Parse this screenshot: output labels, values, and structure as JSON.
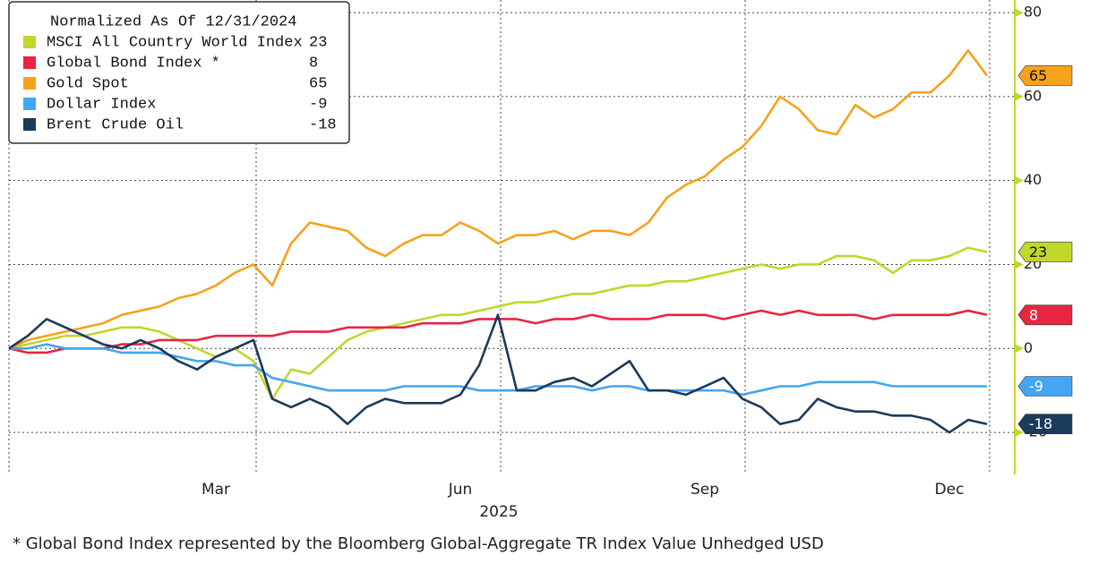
{
  "chart_data": {
    "type": "line",
    "legend_title": "Normalized As Of 12/31/2024",
    "xlabel": "2025",
    "footnote": "* Global Bond Index represented by the Bloomberg Global-Aggregate TR Index Value Unhedged USD",
    "categories": [
      null,
      null,
      null,
      null,
      null,
      null,
      null,
      null,
      null,
      null,
      null,
      "Mar",
      null,
      null,
      null,
      null,
      null,
      null,
      null,
      null,
      null,
      null,
      null,
      null,
      "Jun",
      null,
      null,
      null,
      null,
      null,
      null,
      null,
      null,
      null,
      null,
      null,
      null,
      "Sep",
      null,
      null,
      null,
      null,
      null,
      null,
      null,
      null,
      null,
      null,
      null,
      null,
      "Dec",
      null,
      null
    ],
    "series": [
      {
        "name": "MSCI All Country World Index",
        "color": "#c2d62c",
        "values": [
          0,
          1,
          2,
          3,
          3,
          4,
          5,
          5,
          4,
          2,
          0,
          -2,
          0,
          -3,
          -12,
          -5,
          -6,
          -2,
          2,
          4,
          5,
          6,
          7,
          8,
          8,
          9,
          10,
          11,
          11,
          12,
          13,
          13,
          14,
          15,
          15,
          16,
          16,
          17,
          18,
          19,
          20,
          19,
          20,
          20,
          22,
          22,
          21,
          18,
          21,
          21,
          22,
          24,
          23
        ]
      },
      {
        "name": "Global Bond Index *",
        "color": "#e8253f",
        "values": [
          0,
          -1,
          -1,
          0,
          0,
          0,
          1,
          1,
          2,
          2,
          2,
          3,
          3,
          3,
          3,
          4,
          4,
          4,
          5,
          5,
          5,
          5,
          6,
          6,
          6,
          7,
          7,
          7,
          6,
          7,
          7,
          8,
          7,
          7,
          7,
          8,
          8,
          8,
          7,
          8,
          9,
          8,
          9,
          8,
          8,
          8,
          7,
          8,
          8,
          8,
          8,
          9,
          8
        ]
      },
      {
        "name": "Gold Spot",
        "color": "#f7a21b",
        "values": [
          0,
          2,
          3,
          4,
          5,
          6,
          8,
          9,
          10,
          12,
          13,
          15,
          18,
          20,
          15,
          25,
          30,
          29,
          28,
          24,
          22,
          25,
          27,
          27,
          30,
          28,
          25,
          27,
          27,
          28,
          26,
          28,
          28,
          27,
          30,
          36,
          39,
          41,
          45,
          48,
          53,
          60,
          57,
          52,
          51,
          58,
          55,
          57,
          61,
          61,
          65,
          71,
          65
        ]
      },
      {
        "name": "Dollar Index",
        "color": "#44a5f0",
        "values": [
          0,
          0,
          1,
          0,
          0,
          0,
          -1,
          -1,
          -1,
          -2,
          -3,
          -3,
          -4,
          -4,
          -7,
          -8,
          -9,
          -10,
          -10,
          -10,
          -10,
          -9,
          -9,
          -9,
          -9,
          -10,
          -10,
          -10,
          -9,
          -9,
          -9,
          -10,
          -9,
          -9,
          -10,
          -10,
          -10,
          -10,
          -10,
          -11,
          -10,
          -9,
          -9,
          -8,
          -8,
          -8,
          -8,
          -9,
          -9,
          -9,
          -9,
          -9,
          -9
        ]
      },
      {
        "name": "Brent Crude Oil",
        "color": "#1b3a5c",
        "values": [
          0,
          3,
          7,
          5,
          3,
          1,
          0,
          2,
          0,
          -3,
          -5,
          -2,
          0,
          2,
          -12,
          -14,
          -12,
          -14,
          -18,
          -14,
          -12,
          -13,
          -13,
          -13,
          -11,
          -4,
          8,
          -10,
          -10,
          -8,
          -7,
          -9,
          -6,
          -3,
          -10,
          -10,
          -11,
          -9,
          -7,
          -12,
          -14,
          -18,
          -17,
          -12,
          -14,
          -15,
          -15,
          -16,
          -16,
          -17,
          -20,
          -17,
          -18
        ]
      }
    ],
    "ylim": [
      -30,
      83
    ],
    "yticks": [
      80,
      60,
      40,
      20,
      0,
      -20
    ],
    "axis_color": "#c2d62c",
    "grid": true
  }
}
